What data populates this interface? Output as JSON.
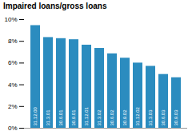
{
  "chart_data": {
    "type": "bar",
    "title": "Impaired loans/gross loans",
    "categories": [
      "31.12.00",
      "31.3.01",
      "30.6.01",
      "30.9.01",
      "31.12.01",
      "31.3.02",
      "30.6.02",
      "30.9.02",
      "31.12.02",
      "31.3.03",
      "30.6.03",
      "30.9.03"
    ],
    "values": [
      9.45,
      8.35,
      8.25,
      8.15,
      7.65,
      7.35,
      6.85,
      6.45,
      6.0,
      5.7,
      4.95,
      4.65
    ],
    "color": "#2b8cbf",
    "ylim": [
      0,
      10
    ],
    "yticks": [
      {
        "value": 0,
        "label": "0%"
      },
      {
        "value": 2,
        "label": "2%"
      },
      {
        "value": 4,
        "label": "4%"
      },
      {
        "value": 6,
        "label": "6%"
      },
      {
        "value": 8,
        "label": "8%"
      },
      {
        "value": 10,
        "label": "10%"
      }
    ],
    "grid": false,
    "tick_labels": "y"
  }
}
